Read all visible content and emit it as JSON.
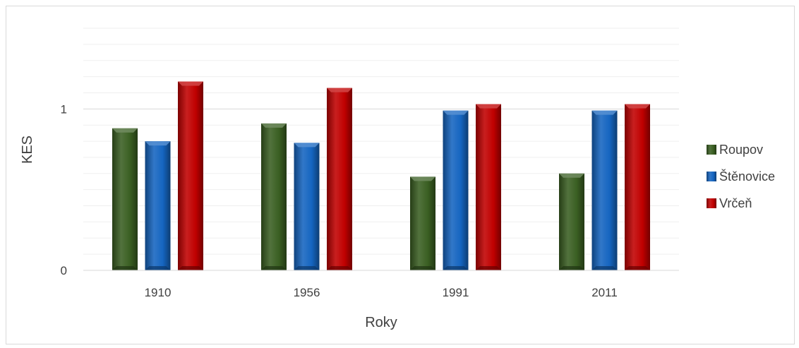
{
  "chart_data": {
    "type": "bar",
    "title": "",
    "xlabel": "Roky",
    "ylabel": "KES",
    "categories": [
      "1910",
      "1956",
      "1991",
      "2011"
    ],
    "series": [
      {
        "name": "Roupov",
        "values": [
          0.88,
          0.91,
          0.58,
          0.6
        ],
        "color": "#3a5f22"
      },
      {
        "name": "Štěnovice",
        "values": [
          0.8,
          0.79,
          0.99,
          0.99
        ],
        "color": "#1565c0"
      },
      {
        "name": "Vrčeň",
        "values": [
          1.17,
          1.13,
          1.03,
          1.03
        ],
        "color": "#c00000"
      }
    ],
    "ylim": [
      0,
      1.5
    ],
    "yticks": [
      0,
      1
    ],
    "minor_gridlines": 0.1,
    "grid": true,
    "legend_position": "right"
  }
}
